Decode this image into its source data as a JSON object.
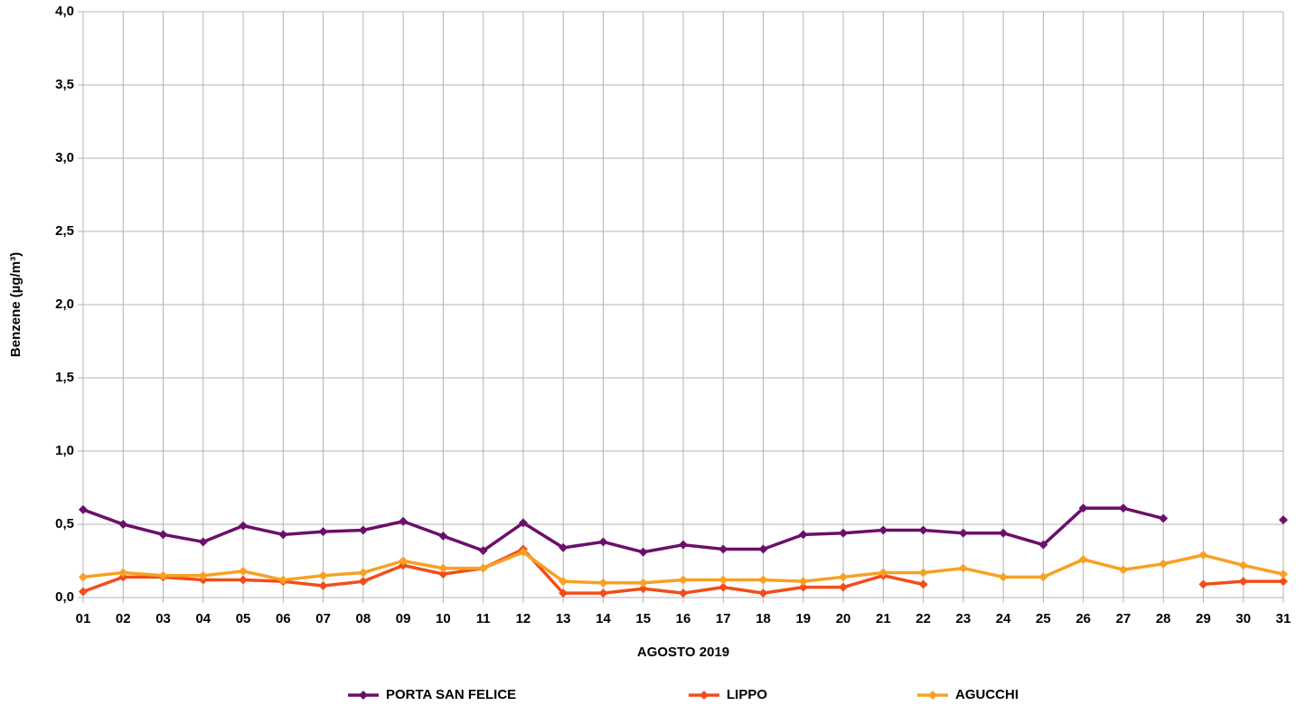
{
  "chart_data": {
    "type": "line",
    "x_label": "AGOSTO 2019",
    "y_label": "Benzene (µg/m³)",
    "categories": [
      "01",
      "02",
      "03",
      "04",
      "05",
      "06",
      "07",
      "08",
      "09",
      "10",
      "11",
      "12",
      "13",
      "14",
      "15",
      "16",
      "17",
      "18",
      "19",
      "20",
      "21",
      "22",
      "23",
      "24",
      "25",
      "26",
      "27",
      "28",
      "29",
      "30",
      "31"
    ],
    "series": [
      {
        "name": "PORTA SAN FELICE",
        "color": "#6b0f6b",
        "values": [
          0.6,
          0.5,
          0.43,
          0.38,
          0.49,
          0.43,
          0.45,
          0.46,
          0.52,
          0.42,
          0.32,
          0.51,
          0.34,
          0.38,
          0.31,
          0.36,
          0.33,
          0.33,
          0.43,
          0.44,
          0.46,
          0.46,
          0.44,
          0.44,
          0.36,
          0.61,
          0.61,
          0.54,
          null,
          null,
          0.53
        ]
      },
      {
        "name": "LIPPO",
        "color": "#f24d1b",
        "values": [
          0.04,
          0.14,
          0.14,
          0.12,
          0.12,
          0.11,
          0.08,
          0.11,
          0.22,
          0.16,
          0.2,
          0.33,
          0.03,
          0.03,
          0.06,
          0.03,
          0.07,
          0.03,
          0.07,
          0.07,
          0.15,
          0.09,
          null,
          null,
          null,
          null,
          null,
          null,
          0.09,
          0.11,
          0.11
        ]
      },
      {
        "name": "AGUCCHI",
        "color": "#f7a122",
        "values": [
          0.14,
          0.17,
          0.15,
          0.15,
          0.18,
          0.12,
          0.15,
          0.17,
          0.25,
          0.2,
          0.2,
          0.31,
          0.11,
          0.1,
          0.1,
          0.12,
          0.12,
          0.12,
          0.11,
          0.14,
          0.17,
          0.17,
          0.2,
          0.14,
          0.14,
          0.26,
          0.19,
          0.23,
          0.29,
          0.22,
          0.16
        ]
      }
    ],
    "ylim": [
      0,
      4
    ],
    "yticks": [
      {
        "value": 0,
        "label": "0,0"
      },
      {
        "value": 0.5,
        "label": "0,5"
      },
      {
        "value": 1,
        "label": "1,0"
      },
      {
        "value": 1.5,
        "label": "1,5"
      },
      {
        "value": 2,
        "label": "2,0"
      },
      {
        "value": 2.5,
        "label": "2,5"
      },
      {
        "value": 3,
        "label": "3,0"
      },
      {
        "value": 3.5,
        "label": "3,5"
      },
      {
        "value": 4,
        "label": "4,0"
      }
    ],
    "grid": true,
    "legend": "bottom"
  }
}
